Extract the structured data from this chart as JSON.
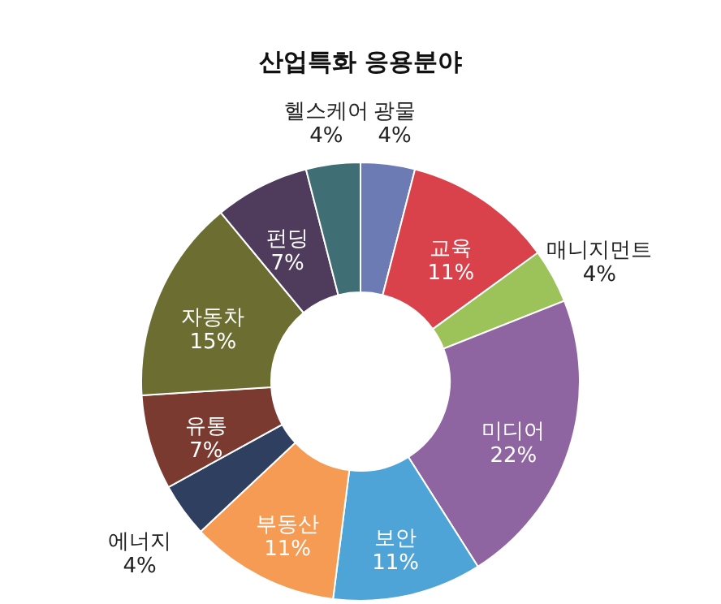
{
  "chart_data": {
    "type": "donut",
    "title": "산업특화 응용분야",
    "categories": [
      "광물",
      "교육",
      "매니지먼트",
      "미디어",
      "보안",
      "부동산",
      "에너지",
      "유통",
      "자동차",
      "펀딩",
      "헬스케어"
    ],
    "values": [
      4,
      11,
      4,
      22,
      11,
      11,
      4,
      7,
      15,
      7,
      4
    ],
    "colors": [
      "#6c7bb4",
      "#d9424b",
      "#9bc35a",
      "#8f65a1",
      "#4fa4d7",
      "#f59b53",
      "#2f3f5f",
      "#7a3a2f",
      "#6b6d31",
      "#4f3b5b",
      "#3f6f74"
    ],
    "value_labels": [
      "4%",
      "11%",
      "4%",
      "22%",
      "11%",
      "11%",
      "4%",
      "7%",
      "15%",
      "7%",
      "4%"
    ],
    "legend": false
  }
}
